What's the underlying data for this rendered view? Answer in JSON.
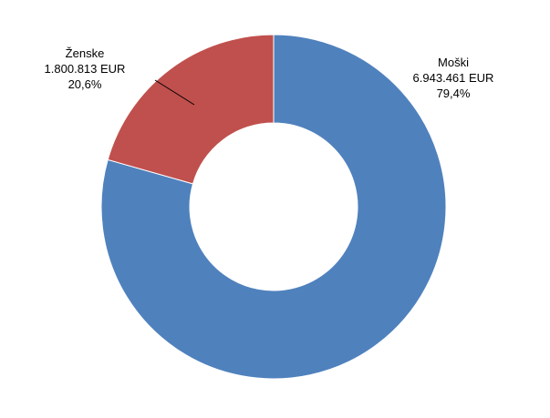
{
  "chart_data": {
    "type": "pie",
    "variant": "doughnut",
    "start_angle_deg": 0,
    "direction": "clockwise",
    "slices": [
      {
        "name": "Moški",
        "value": 6943461,
        "value_label": "6.943.461 EUR",
        "percent_label": "79,4%",
        "color": "#4F81BD"
      },
      {
        "name": "Ženske",
        "value": 1800813,
        "value_label": "1.800.813 EUR",
        "percent_label": "20,6%",
        "color": "#C0504D"
      }
    ]
  }
}
